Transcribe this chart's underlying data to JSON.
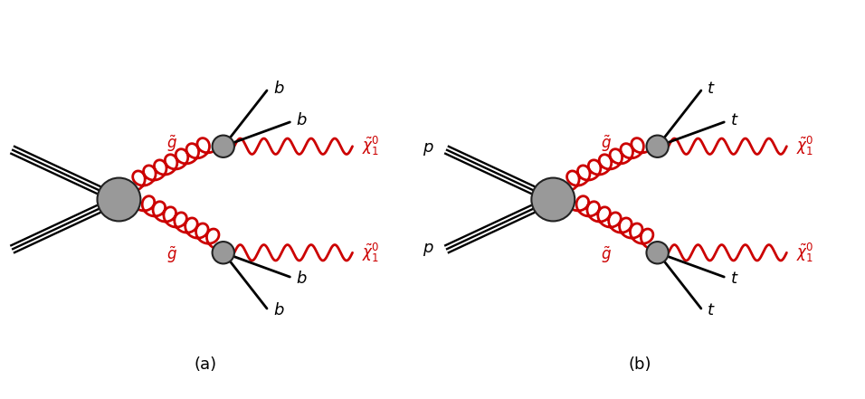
{
  "background_color": "#ffffff",
  "fig_width": 9.56,
  "fig_height": 4.41,
  "dpi": 100,
  "label_a": "(a)",
  "label_b": "(b)",
  "red_color": "#cc0000",
  "black_color": "#000000",
  "gray_fill": "#999999",
  "gray_edge": "#222222",
  "diagram_a_fermions_upper": [
    "b",
    "b"
  ],
  "diagram_a_fermions_lower": [
    "b",
    "b"
  ],
  "diagram_b_fermions_upper": [
    "t",
    "t"
  ],
  "diagram_b_fermions_lower": [
    "t",
    "t"
  ]
}
